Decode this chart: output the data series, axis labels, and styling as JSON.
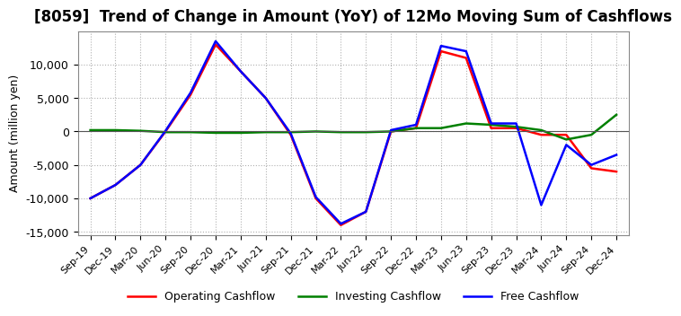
{
  "title": "[8059]  Trend of Change in Amount (YoY) of 12Mo Moving Sum of Cashflows",
  "ylabel": "Amount (million yen)",
  "x_labels": [
    "Sep-19",
    "Dec-19",
    "Mar-20",
    "Jun-20",
    "Sep-20",
    "Dec-20",
    "Mar-21",
    "Jun-21",
    "Sep-21",
    "Dec-21",
    "Mar-22",
    "Jun-22",
    "Sep-22",
    "Dec-22",
    "Mar-23",
    "Jun-23",
    "Sep-23",
    "Dec-23",
    "Mar-24",
    "Jun-24",
    "Sep-24",
    "Dec-24"
  ],
  "operating": [
    -10000,
    -8000,
    -5000,
    0,
    5500,
    13000,
    9000,
    5000,
    -500,
    -10000,
    -14000,
    -12000,
    0,
    500,
    12000,
    11000,
    500,
    500,
    -500,
    -500,
    -5500,
    -6000
  ],
  "investing": [
    200,
    200,
    100,
    -100,
    -100,
    -200,
    -200,
    -100,
    -100,
    0,
    -100,
    -100,
    0,
    500,
    500,
    1200,
    1000,
    700,
    200,
    -1200,
    -500,
    2500
  ],
  "free": [
    -10000,
    -8000,
    -5000,
    100,
    5800,
    13500,
    9000,
    5000,
    -300,
    -9800,
    -13800,
    -12000,
    200,
    1000,
    12800,
    12000,
    1200,
    1200,
    -11000,
    -2000,
    -5000,
    -3500
  ],
  "ylim": [
    -15500,
    15000
  ],
  "yticks": [
    -15000,
    -10000,
    -5000,
    0,
    5000,
    10000
  ],
  "operating_color": "#ff0000",
  "investing_color": "#008000",
  "free_color": "#0000ff",
  "bg_color": "#ffffff",
  "grid_color": "#b0b0b0",
  "title_fontsize": 12,
  "axis_fontsize": 9,
  "tick_fontsize": 8
}
